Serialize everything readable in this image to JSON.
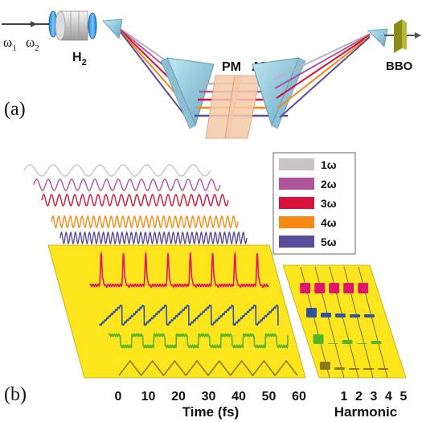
{
  "setup": {
    "panel_label": "(a)",
    "input_label_w1": "ω",
    "input_sub_1": "1",
    "input_label_w2": "ω",
    "input_sub_2": "2",
    "cell_label": "H",
    "cell_sub": "2",
    "pm_label": "PM",
    "am_label": "AM",
    "crystal_label": "BBO",
    "beam_colors": [
      "#b9b4c0",
      "#b0559a",
      "#d8123c",
      "#f58a12",
      "#5a4e9a"
    ]
  },
  "waveforms": {
    "panel_label": "(b)",
    "legend": [
      {
        "label": "1ω",
        "color": "#c9c4c4"
      },
      {
        "label": "2ω",
        "color": "#b0559a"
      },
      {
        "label": "3ω",
        "color": "#d8123c"
      },
      {
        "label": "4ω",
        "color": "#f58a12"
      },
      {
        "label": "5ω",
        "color": "#5a4e9a"
      }
    ],
    "time_axis": {
      "label": "Time (fs)",
      "ticks": [
        "0",
        "10",
        "20",
        "30",
        "40",
        "50",
        "60"
      ]
    },
    "harmonic_axis": {
      "label": "Harmonic",
      "ticks": [
        "1",
        "2",
        "3",
        "4",
        "5"
      ]
    },
    "synthesized_colors": [
      "#e0156e",
      "#2f52a3",
      "#55b52b",
      "#8a7a1a"
    ],
    "panel_fill": "#fce51c"
  }
}
